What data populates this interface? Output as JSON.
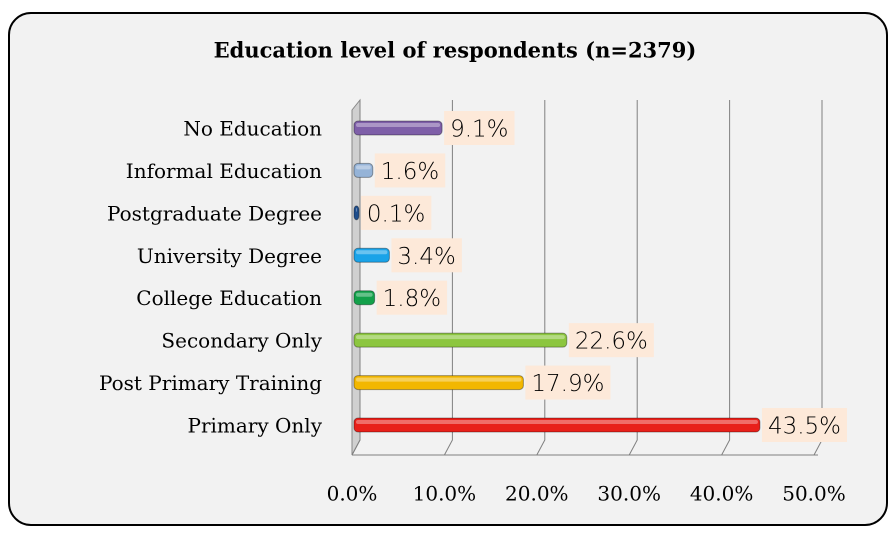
{
  "chart_data": {
    "type": "bar",
    "orientation": "horizontal",
    "title": "Education level of respondents (n=2379)",
    "categories": [
      "No Education",
      "Informal Education",
      "Postgraduate Degree",
      "University Degree",
      "College Education",
      "Secondary Only",
      "Post Primary Training",
      "Primary Only"
    ],
    "values": [
      9.1,
      1.6,
      0.1,
      3.4,
      1.8,
      22.6,
      17.9,
      43.5
    ],
    "value_labels": [
      "9.1%",
      "1.6%",
      "0.1%",
      "3.4%",
      "1.8%",
      "22.6%",
      "17.9%",
      "43.5%"
    ],
    "colors": [
      "#7e5fa8",
      "#95b3d7",
      "#1f4e8c",
      "#1aa3e8",
      "#13a04a",
      "#8cc63f",
      "#f2b700",
      "#e8201a"
    ],
    "xlim": [
      0,
      50
    ],
    "xticks": [
      {
        "value": 0,
        "label": "0.0%"
      },
      {
        "value": 10,
        "label": "10.0%"
      },
      {
        "value": 20,
        "label": "20.0%"
      },
      {
        "value": 30,
        "label": "30.0%"
      },
      {
        "value": 40,
        "label": "40.0%"
      },
      {
        "value": 50,
        "label": "50.0%"
      }
    ],
    "grid": true
  }
}
